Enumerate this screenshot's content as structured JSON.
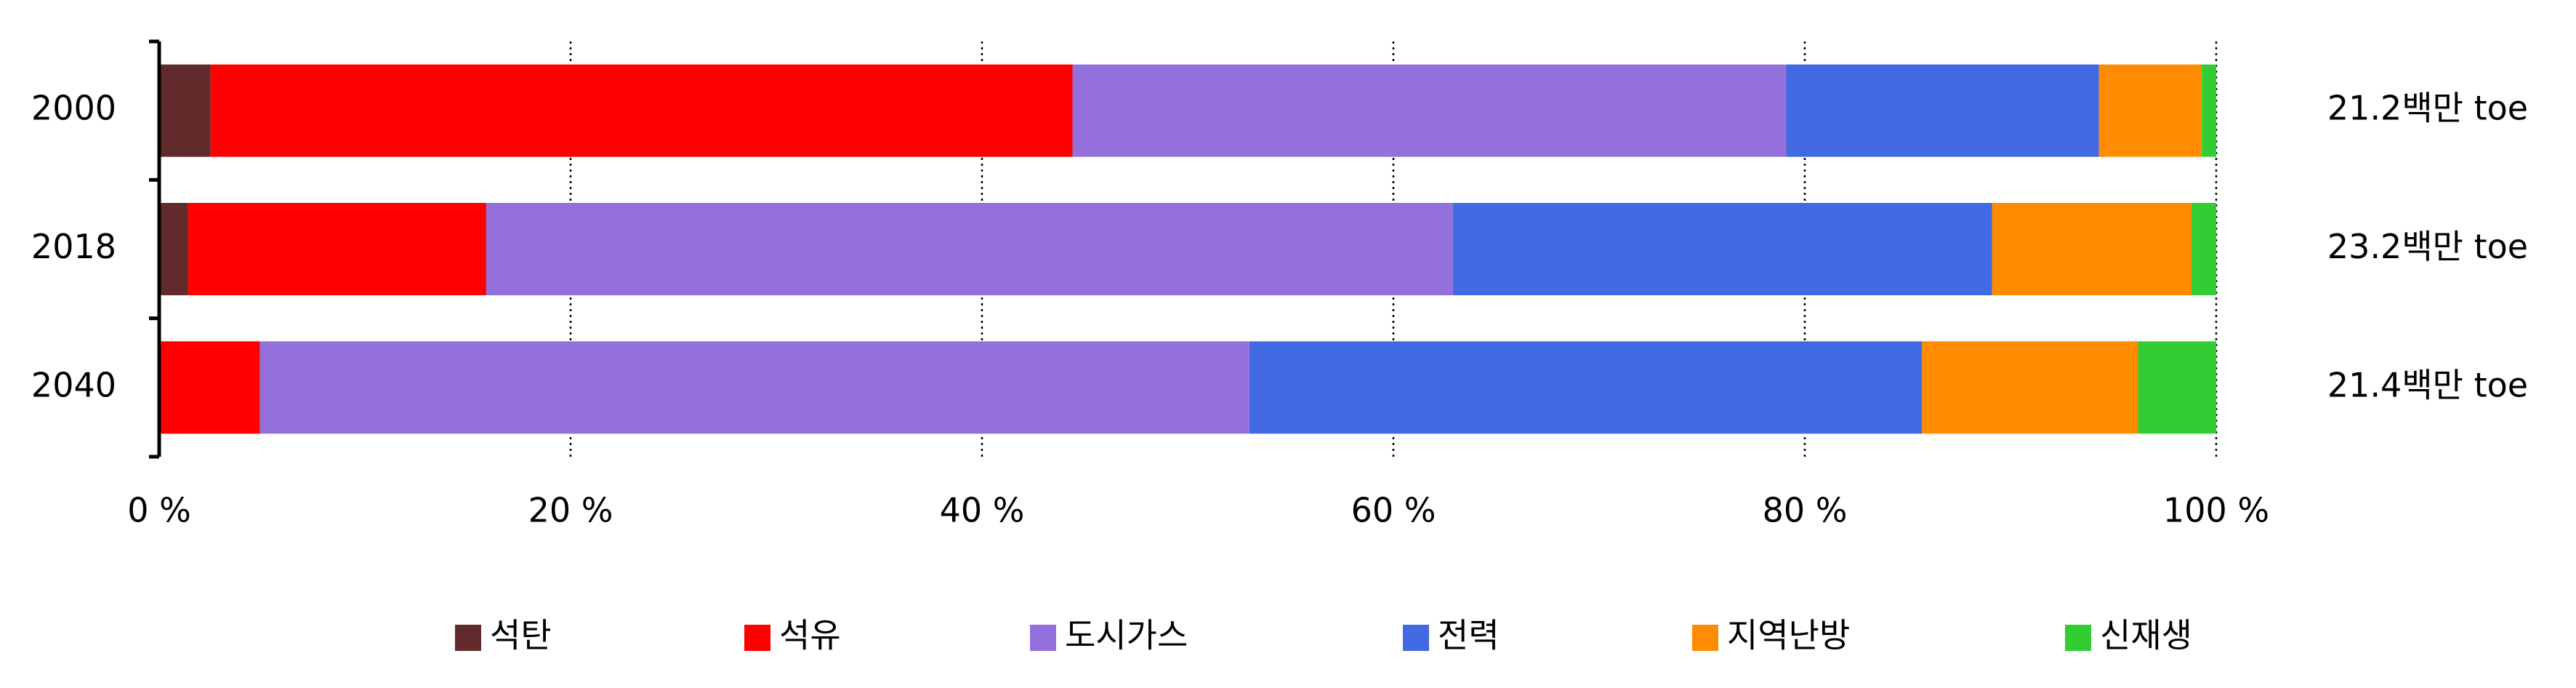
{
  "chart_data": {
    "type": "stacked-bar-horizontal",
    "categories": [
      "2000",
      "2018",
      "2040"
    ],
    "series": [
      {
        "name": "석탄",
        "color": "#622a2a",
        "values": [
          2.5,
          1.4,
          0
        ]
      },
      {
        "name": "석유",
        "color": "#ff0000",
        "values": [
          41.9,
          14.5,
          4.9
        ]
      },
      {
        "name": "도시가스",
        "color": "#9370db",
        "values": [
          34.7,
          47.0,
          48.1
        ]
      },
      {
        "name": "전력",
        "color": "#4169e1",
        "values": [
          15.2,
          26.2,
          32.7
        ]
      },
      {
        "name": "지역난방",
        "color": "#ff8c00",
        "values": [
          5.0,
          9.7,
          10.5
        ]
      },
      {
        "name": "신재생",
        "color": "#32cd32",
        "values": [
          0.7,
          1.2,
          3.8
        ]
      }
    ],
    "annotations": [
      "21.2백만 toe",
      "23.2백만 toe",
      "21.4백만 toe"
    ],
    "xlim": [
      0,
      100
    ],
    "xticks": [
      {
        "value": 0,
        "label": "0 %"
      },
      {
        "value": 20,
        "label": "20 %"
      },
      {
        "value": 40,
        "label": "40 %"
      },
      {
        "value": 60,
        "label": "60 %"
      },
      {
        "value": 80,
        "label": "80 %"
      },
      {
        "value": 100,
        "label": "100 %"
      }
    ],
    "grid": true
  }
}
